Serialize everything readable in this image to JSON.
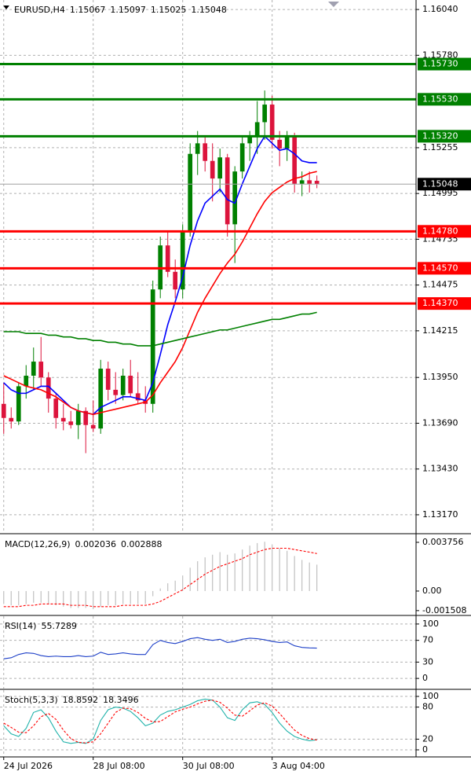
{
  "chart_data": [
    {
      "type": "candlestick",
      "title": "EURUSD,H4",
      "x": [
        0,
        1,
        2,
        3,
        4,
        5,
        6,
        7,
        8,
        9,
        10,
        11,
        12,
        13,
        14,
        15,
        16,
        17,
        18,
        19,
        20,
        21,
        22,
        23,
        24,
        25,
        26,
        27,
        28,
        29,
        30,
        31,
        32,
        33,
        34,
        35,
        36,
        37,
        38,
        39,
        40,
        41,
        42
      ],
      "open": [
        1.138,
        1.1372,
        1.137,
        1.139,
        1.1396,
        1.1404,
        1.1395,
        1.1383,
        1.1372,
        1.137,
        1.1368,
        1.1376,
        1.1368,
        1.1366,
        1.14,
        1.1388,
        1.1385,
        1.1396,
        1.1386,
        1.1382,
        1.138,
        1.1445,
        1.147,
        1.1455,
        1.1445,
        1.1478,
        1.1522,
        1.1528,
        1.1518,
        1.1508,
        1.152,
        1.1482,
        1.1512,
        1.1528,
        1.1532,
        1.154,
        1.155,
        1.153,
        1.1525,
        1.1532,
        1.1505,
        1.1507,
        1.15067
      ],
      "high": [
        1.1392,
        1.1378,
        1.1392,
        1.1402,
        1.1412,
        1.1418,
        1.1398,
        1.1386,
        1.138,
        1.1376,
        1.138,
        1.1378,
        1.1382,
        1.1405,
        1.1404,
        1.1398,
        1.14,
        1.1405,
        1.1398,
        1.139,
        1.145,
        1.1475,
        1.1478,
        1.1462,
        1.1482,
        1.1528,
        1.1535,
        1.1532,
        1.1528,
        1.1525,
        1.1522,
        1.1515,
        1.1532,
        1.1535,
        1.1552,
        1.1558,
        1.1555,
        1.1535,
        1.1535,
        1.1534,
        1.1512,
        1.1512,
        1.15097
      ],
      "low": [
        1.1363,
        1.1366,
        1.1368,
        1.1383,
        1.1388,
        1.139,
        1.1375,
        1.1366,
        1.1365,
        1.1366,
        1.136,
        1.1352,
        1.1364,
        1.1363,
        1.1382,
        1.138,
        1.1382,
        1.1384,
        1.138,
        1.1375,
        1.1375,
        1.144,
        1.1452,
        1.144,
        1.144,
        1.1475,
        1.151,
        1.1512,
        1.1495,
        1.15,
        1.1475,
        1.146,
        1.1508,
        1.1518,
        1.1522,
        1.153,
        1.1525,
        1.1515,
        1.1518,
        1.15,
        1.1498,
        1.15,
        1.15025
      ],
      "close": [
        1.1372,
        1.137,
        1.139,
        1.1396,
        1.1404,
        1.1395,
        1.1383,
        1.1372,
        1.137,
        1.1368,
        1.1376,
        1.1368,
        1.1366,
        1.14,
        1.1388,
        1.1385,
        1.1396,
        1.1386,
        1.1382,
        1.138,
        1.1445,
        1.147,
        1.1455,
        1.1445,
        1.1478,
        1.1522,
        1.1528,
        1.1518,
        1.1508,
        1.152,
        1.1482,
        1.1512,
        1.1528,
        1.1532,
        1.154,
        1.155,
        1.153,
        1.1525,
        1.1532,
        1.1505,
        1.1507,
        1.1505,
        1.15048
      ],
      "up_color": "#008000",
      "down_color": "#dc143c",
      "series": [
        {
          "type": "line",
          "color": "#0000ff",
          "values": [
            1.1392,
            1.1388,
            1.1386,
            1.1386,
            1.1388,
            1.139,
            1.139,
            1.1386,
            1.1382,
            1.1378,
            1.1376,
            1.1375,
            1.1374,
            1.1378,
            1.138,
            1.1382,
            1.1384,
            1.1384,
            1.1383,
            1.1382,
            1.1392,
            1.1408,
            1.1425,
            1.1438,
            1.1452,
            1.147,
            1.1484,
            1.1494,
            1.1498,
            1.1502,
            1.1496,
            1.1494,
            1.1505,
            1.1515,
            1.1525,
            1.1532,
            1.1528,
            1.1524,
            1.1525,
            1.1522,
            1.1518,
            1.1517,
            1.1517
          ]
        },
        {
          "type": "line",
          "color": "#ff0000",
          "values": [
            1.1396,
            1.1394,
            1.1392,
            1.139,
            1.1389,
            1.1388,
            1.1386,
            1.1384,
            1.1381,
            1.1378,
            1.1376,
            1.1375,
            1.1374,
            1.1375,
            1.1376,
            1.1377,
            1.1378,
            1.1379,
            1.138,
            1.1381,
            1.1385,
            1.1392,
            1.1398,
            1.1404,
            1.1412,
            1.1422,
            1.1432,
            1.144,
            1.1447,
            1.1454,
            1.146,
            1.1465,
            1.1472,
            1.148,
            1.1488,
            1.1495,
            1.15,
            1.1503,
            1.1506,
            1.1508,
            1.1509,
            1.1511,
            1.1512
          ]
        },
        {
          "type": "line",
          "color": "#008000",
          "values": [
            1.1421,
            1.1421,
            1.1421,
            1.142,
            1.142,
            1.142,
            1.1419,
            1.1419,
            1.1418,
            1.1418,
            1.1417,
            1.1417,
            1.1416,
            1.1416,
            1.1415,
            1.1415,
            1.1414,
            1.1414,
            1.1413,
            1.1413,
            1.1413,
            1.1414,
            1.1415,
            1.1416,
            1.1417,
            1.1418,
            1.1419,
            1.142,
            1.1421,
            1.1422,
            1.1422,
            1.1423,
            1.1424,
            1.1425,
            1.1426,
            1.1427,
            1.1428,
            1.1428,
            1.1429,
            1.143,
            1.1431,
            1.1431,
            1.1432
          ]
        }
      ],
      "levels": [
        {
          "value": 1.1573,
          "label": "1.15730",
          "color": "#008000"
        },
        {
          "value": 1.1553,
          "label": "1.15530",
          "color": "#008000"
        },
        {
          "value": 1.1532,
          "label": "1.15320",
          "color": "#008000"
        },
        {
          "value": 1.1478,
          "label": "1.14780",
          "color": "#ff0000"
        },
        {
          "value": 1.1457,
          "label": "1.14570",
          "color": "#ff0000"
        },
        {
          "value": 1.1437,
          "label": "1.14370",
          "color": "#ff0000"
        }
      ],
      "xlim": [
        -0.5,
        55.3
      ],
      "xticks": [
        {
          "value": 0,
          "label": "24 Jul 2026"
        },
        {
          "value": 12,
          "label": "28 Jul 08:00"
        },
        {
          "value": 24,
          "label": "30 Jul 08:00"
        },
        {
          "value": 36,
          "label": "3 Aug 04:00"
        }
      ],
      "ylim": [
        1.13067,
        1.16094
      ],
      "yticks": [
        {
          "value": 1.1604,
          "label": "1.16040"
        },
        {
          "value": 1.1578,
          "label": "1.15780"
        },
        1.15255,
        1.14995,
        1.14735,
        1.14475,
        1.14215,
        {
          "value": 1.1395,
          "label": "1.13950"
        },
        {
          "value": 1.1369,
          "label": "1.13690"
        },
        {
          "value": 1.1343,
          "label": "1.13430"
        },
        {
          "value": 1.1317,
          "label": "1.13170"
        }
      ],
      "grid": true
    },
    {
      "type": "bar",
      "title": "MACD(12,26,9)",
      "series": [
        {
          "type": "bar",
          "color": "#c0c0c0",
          "values": [
            -0.001,
            -0.0011,
            -0.0011,
            -0.001,
            -0.0009,
            -0.0009,
            -0.001,
            -0.0011,
            -0.0012,
            -0.0013,
            -0.0013,
            -0.0013,
            -0.0014,
            -0.0012,
            -0.0011,
            -0.0011,
            -0.001,
            -0.001,
            -0.001,
            -0.001,
            -0.0004,
            0.0002,
            0.0006,
            0.0008,
            0.0012,
            0.0018,
            0.0023,
            0.0026,
            0.0028,
            0.003,
            0.0028,
            0.0029,
            0.0032,
            0.0035,
            0.0037,
            0.0038,
            0.0036,
            0.0033,
            0.0031,
            0.0027,
            0.0024,
            0.0022,
            0.002036
          ]
        },
        {
          "type": "line",
          "dashed": true,
          "color": "#ff0000",
          "values": [
            -0.0012,
            -0.0012,
            -0.0012,
            -0.0011,
            -0.0011,
            -0.001,
            -0.001,
            -0.001,
            -0.001,
            -0.0011,
            -0.0011,
            -0.0011,
            -0.0012,
            -0.0012,
            -0.0012,
            -0.0012,
            -0.0011,
            -0.0011,
            -0.0011,
            -0.0011,
            -0.001,
            -0.0008,
            -0.0005,
            -0.0002,
            0.0001,
            0.0005,
            0.0009,
            0.0013,
            0.0016,
            0.0019,
            0.0021,
            0.0023,
            0.0025,
            0.0028,
            0.003,
            0.0032,
            0.0033,
            0.0033,
            0.0033,
            0.0032,
            0.0031,
            0.003,
            0.002888
          ]
        }
      ],
      "ylim": [
        -0.00182,
        0.00436
      ],
      "yticks": [
        0.003756,
        {
          "value": 0,
          "label": "0.00"
        },
        -0.001508
      ],
      "grid": false
    },
    {
      "type": "line",
      "title": "RSI(14)",
      "series": [
        {
          "type": "line",
          "color": "#1e40c8",
          "values": [
            36,
            38,
            44,
            47,
            46,
            42,
            40,
            41,
            40,
            40,
            42,
            40,
            41,
            48,
            44,
            45,
            47,
            45,
            44,
            44,
            62,
            70,
            66,
            64,
            68,
            73,
            75,
            72,
            70,
            72,
            66,
            68,
            72,
            74,
            73,
            71,
            68,
            66,
            67,
            60,
            57,
            56,
            55.7289
          ]
        }
      ],
      "ylim": [
        -18.6,
        114.3
      ],
      "yticks": [
        100,
        70,
        30,
        0
      ],
      "grid": true
    },
    {
      "type": "line",
      "title": "Stoch(5,3,3)",
      "series": [
        {
          "type": "line",
          "color": "#20b2aa",
          "values": [
            45,
            30,
            25,
            40,
            70,
            75,
            60,
            35,
            15,
            12,
            14,
            12,
            20,
            55,
            75,
            80,
            78,
            72,
            60,
            45,
            50,
            65,
            72,
            75,
            80,
            85,
            92,
            95,
            93,
            80,
            60,
            55,
            75,
            88,
            90,
            85,
            70,
            50,
            35,
            25,
            20,
            17,
            18.8592
          ]
        },
        {
          "type": "line",
          "dashed": true,
          "color": "#ff0000",
          "values": [
            50,
            42,
            33,
            32,
            45,
            62,
            68,
            57,
            37,
            21,
            14,
            13,
            15,
            30,
            50,
            70,
            78,
            77,
            70,
            59,
            52,
            53,
            62,
            71,
            76,
            80,
            86,
            91,
            93,
            89,
            78,
            65,
            63,
            73,
            84,
            88,
            82,
            68,
            52,
            37,
            27,
            21,
            18.3496
          ]
        }
      ],
      "ylim": [
        -11.8,
        111.8
      ],
      "yticks": [
        100,
        80,
        20,
        0
      ],
      "grid": true
    }
  ]
}
